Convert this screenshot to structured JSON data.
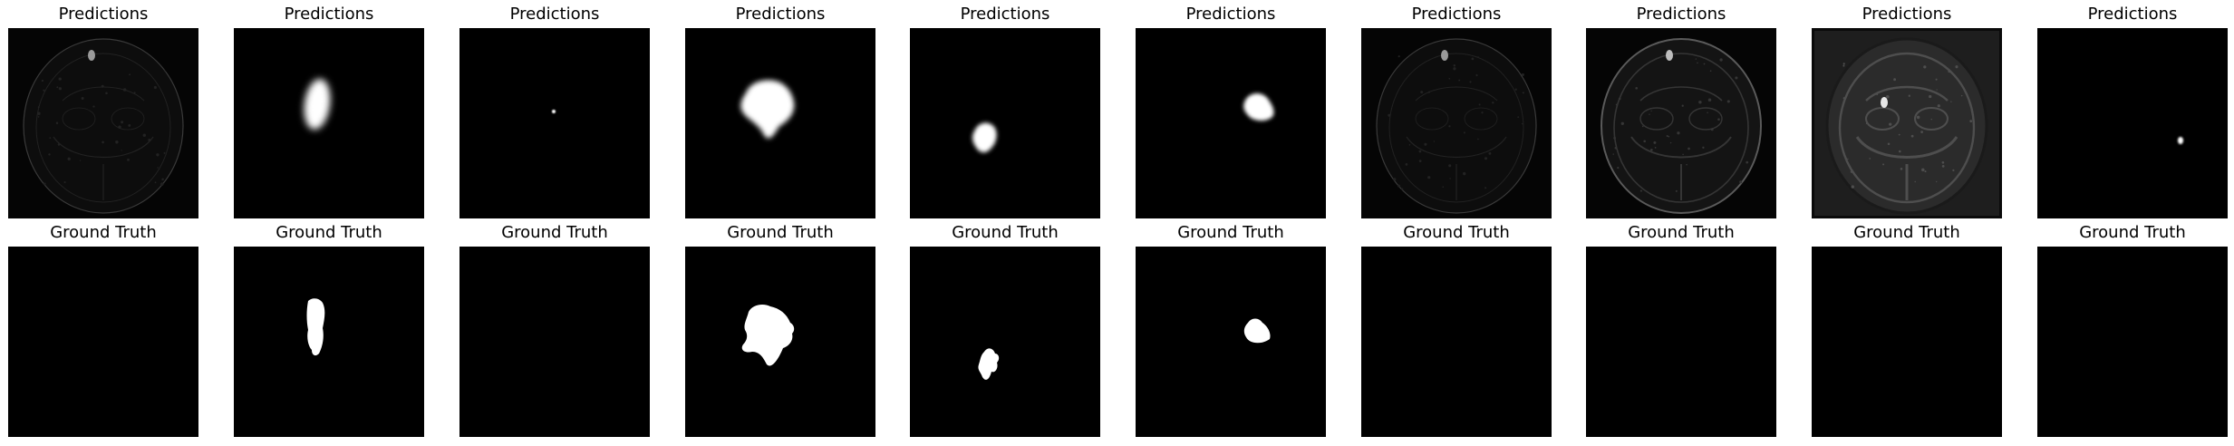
{
  "rows": [
    {
      "title": "Predictions",
      "panels": [
        {
          "kind": "scan",
          "tone": "dim"
        },
        {
          "kind": "mask",
          "shape": "pred-1"
        },
        {
          "kind": "mask",
          "shape": "dot"
        },
        {
          "kind": "mask",
          "shape": "pred-3"
        },
        {
          "kind": "mask",
          "shape": "pred-4"
        },
        {
          "kind": "mask",
          "shape": "pred-5"
        },
        {
          "kind": "scan",
          "tone": "dim"
        },
        {
          "kind": "scan",
          "tone": "medium"
        },
        {
          "kind": "scan",
          "tone": "bright"
        },
        {
          "kind": "mask",
          "shape": "small-spot"
        }
      ]
    },
    {
      "title": "Ground Truth",
      "panels": [
        {
          "kind": "empty"
        },
        {
          "kind": "mask",
          "shape": "gt-1"
        },
        {
          "kind": "empty"
        },
        {
          "kind": "mask",
          "shape": "gt-3"
        },
        {
          "kind": "mask",
          "shape": "gt-4"
        },
        {
          "kind": "mask",
          "shape": "gt-5"
        },
        {
          "kind": "empty"
        },
        {
          "kind": "empty"
        },
        {
          "kind": "empty"
        },
        {
          "kind": "empty"
        }
      ]
    }
  ]
}
